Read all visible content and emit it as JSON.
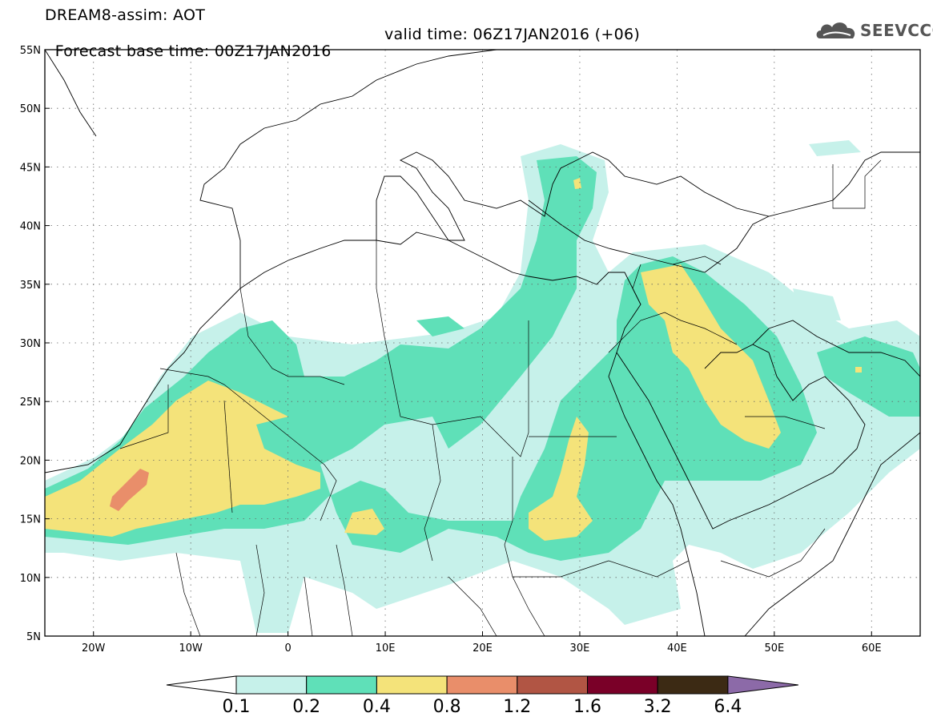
{
  "header": {
    "line1": "DREAM8-assim: AOT",
    "base_time": "Forecast base time: 00Z17JAN2016",
    "valid_time": "valid time: 06Z17JAN2016 (+06)"
  },
  "logo": {
    "text": "SEEVCCC",
    "icon": "cloud-icon"
  },
  "map": {
    "lon_range": [
      -25,
      65
    ],
    "lat_range": [
      5,
      55
    ],
    "lat_labels": [
      "5N",
      "10N",
      "15N",
      "20N",
      "25N",
      "30N",
      "35N",
      "40N",
      "45N",
      "50N",
      "55N"
    ],
    "lon_labels": [
      "20W",
      "10W",
      "0",
      "10E",
      "20E",
      "30E",
      "40E",
      "50E",
      "60E"
    ],
    "grid": "dotted"
  },
  "colorbar": {
    "labels": [
      "0.1",
      "0.2",
      "0.4",
      "0.8",
      "1.2",
      "1.6",
      "3.2",
      "6.4"
    ],
    "colors": [
      "#ffffff",
      "#c6f1ea",
      "#5fe0b8",
      "#f4e37a",
      "#e98e6a",
      "#b15544",
      "#7a0028",
      "#3c2a14",
      "#8c6aa8"
    ]
  },
  "fields": {
    "c1": "#c6f1ea",
    "c2": "#5fe0b8",
    "c3": "#f4e37a",
    "c4": "#e98e6a"
  }
}
